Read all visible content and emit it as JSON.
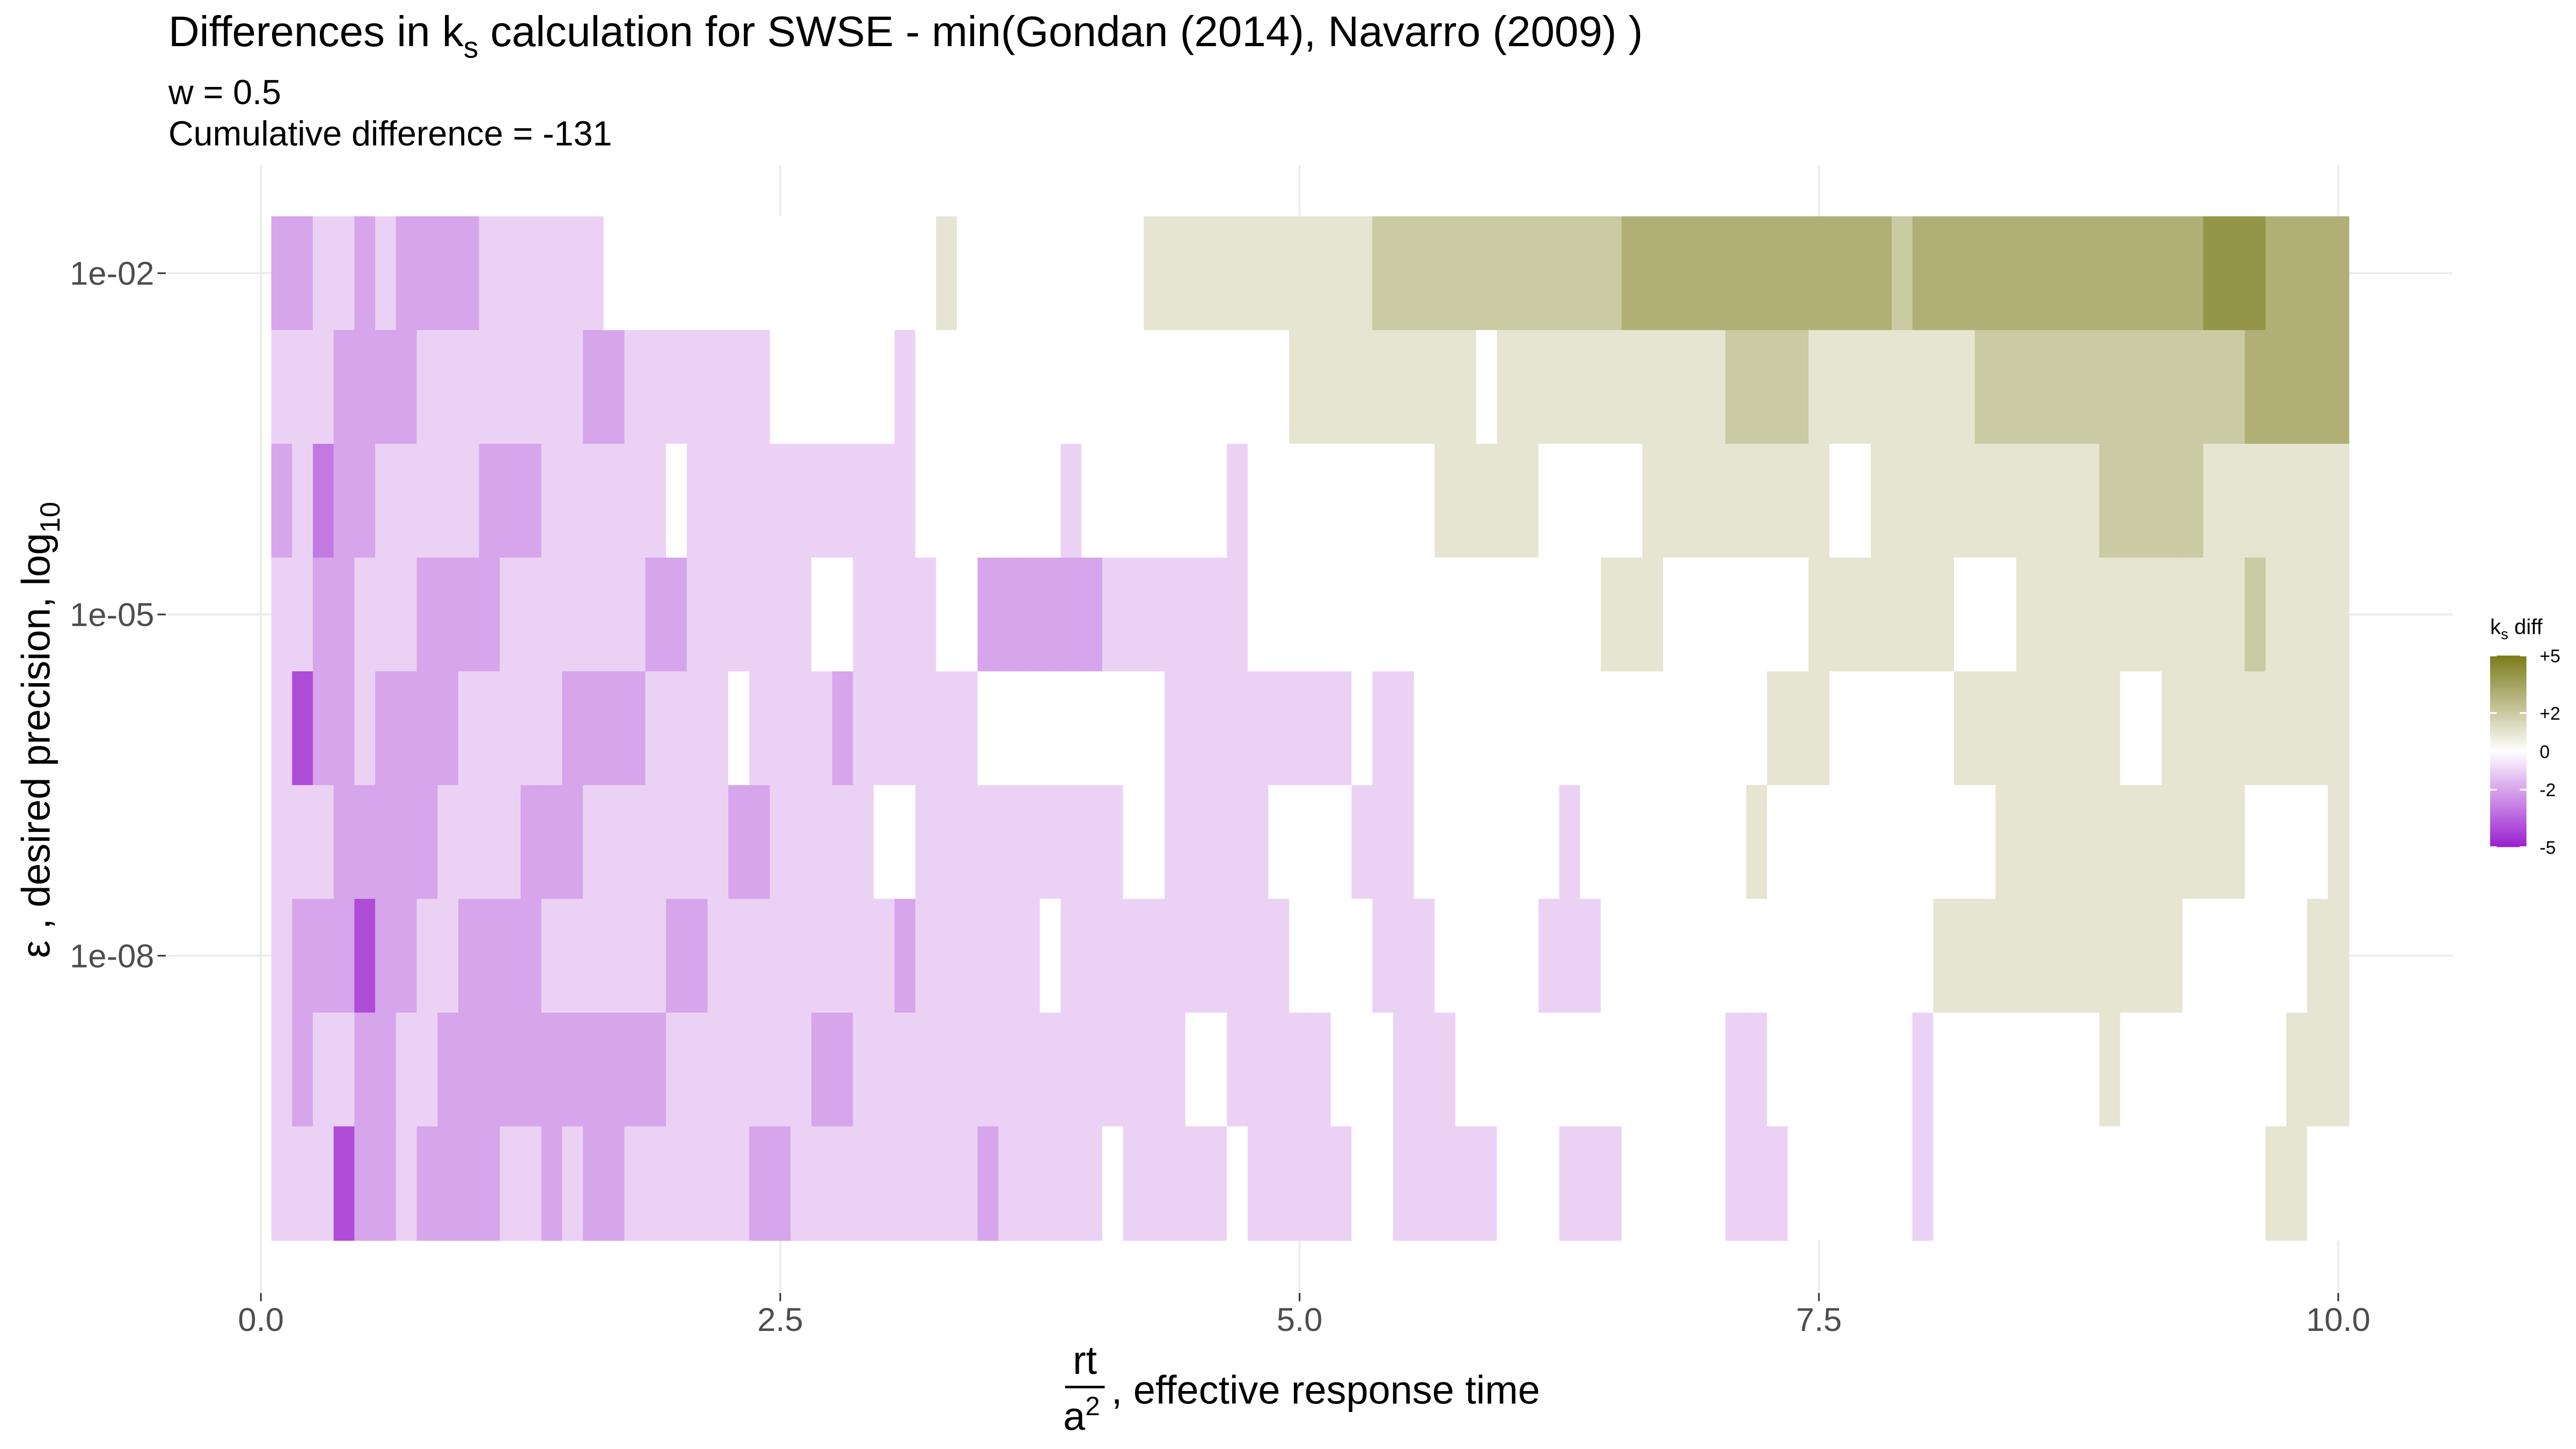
{
  "chart_data": {
    "type": "heatmap",
    "title": {
      "text": "Differences in  k",
      "sub": "s",
      "rest": "  calculation for SWSE - min(Gondan (2014), Navarro (2009) )"
    },
    "subtitle": [
      "w = 0.5",
      "Cumulative difference = -131"
    ],
    "xlabel": {
      "numerator": "rt",
      "denominator": "a",
      "denominator_sup": "2",
      "text": ", effective response time"
    },
    "ylabel": {
      "text": "ε , desired precision,  log",
      "sub": "10"
    },
    "legend_title": {
      "text": "k",
      "sub": "s",
      "rest": " diff"
    },
    "x": [
      0.1,
      0.2,
      0.3,
      0.4,
      0.5,
      0.6,
      0.7,
      0.8,
      0.9,
      1.0,
      1.1,
      1.2,
      1.3,
      1.4,
      1.5,
      1.6,
      1.7,
      1.8,
      1.9,
      2.0,
      2.1,
      2.2,
      2.3,
      2.4,
      2.5,
      2.6,
      2.7,
      2.8,
      2.9,
      3.0,
      3.1,
      3.2,
      3.3,
      3.4,
      3.5,
      3.6,
      3.7,
      3.8,
      3.9,
      4.0,
      4.1,
      4.2,
      4.3,
      4.4,
      4.5,
      4.6,
      4.7,
      4.8,
      4.9,
      5.0,
      5.1,
      5.2,
      5.3,
      5.4,
      5.5,
      5.6,
      5.7,
      5.8,
      5.9,
      6.0,
      6.1,
      6.2,
      6.3,
      6.4,
      6.5,
      6.6,
      6.7,
      6.8,
      6.9,
      7.0,
      7.1,
      7.2,
      7.3,
      7.4,
      7.5,
      7.6,
      7.7,
      7.8,
      7.9,
      8.0,
      8.1,
      8.2,
      8.3,
      8.4,
      8.5,
      8.6,
      8.7,
      8.8,
      8.9,
      9.0,
      9.1,
      9.2,
      9.3,
      9.4,
      9.5,
      9.6,
      9.7,
      9.8,
      9.9,
      10.0
    ],
    "y": [
      0.01,
      0.001,
      0.0001,
      1e-05,
      1e-06,
      1e-07,
      1e-08,
      1e-09,
      1e-10
    ],
    "z": [
      [
        -2,
        -2,
        -1,
        -1,
        -2,
        -1,
        -2,
        -2,
        -2,
        -2,
        -1,
        -1,
        -1,
        -1,
        -1,
        -1,
        0,
        0,
        0,
        0,
        0,
        0,
        0,
        0,
        0,
        0,
        0,
        0,
        0,
        0,
        0,
        0,
        1,
        0,
        0,
        0,
        0,
        0,
        0,
        0,
        0,
        0,
        1,
        1,
        1,
        1,
        1,
        1,
        1,
        1,
        1,
        1,
        1,
        2,
        2,
        2,
        2,
        2,
        2,
        2,
        2,
        2,
        2,
        2,
        2,
        3,
        3,
        3,
        3,
        3,
        3,
        3,
        3,
        3,
        3,
        3,
        3,
        3,
        2,
        3,
        3,
        3,
        3,
        3,
        3,
        3,
        3,
        3,
        3,
        3,
        3,
        3,
        3,
        4,
        4,
        4,
        3,
        3,
        3,
        3
      ],
      [
        -1,
        -1,
        -1,
        -2,
        -2,
        -2,
        -2,
        -1,
        -1,
        -1,
        -1,
        -1,
        -1,
        -1,
        -1,
        -2,
        -2,
        -1,
        -1,
        -1,
        -1,
        -1,
        -1,
        -1,
        0,
        0,
        0,
        0,
        0,
        0,
        -1,
        0,
        0,
        0,
        0,
        0,
        0,
        0,
        0,
        0,
        0,
        0,
        0,
        0,
        0,
        0,
        0,
        0,
        0,
        1,
        1,
        1,
        1,
        1,
        1,
        1,
        1,
        1,
        0,
        1,
        1,
        1,
        1,
        1,
        1,
        1,
        1,
        1,
        1,
        1,
        2,
        2,
        2,
        2,
        1,
        1,
        1,
        1,
        1,
        1,
        1,
        1,
        2,
        2,
        2,
        2,
        2,
        2,
        2,
        2,
        2,
        2,
        2,
        2,
        2,
        3,
        3,
        3,
        3,
        3
      ],
      [
        -2,
        -1,
        -3,
        -2,
        -2,
        -1,
        -1,
        -1,
        -1,
        -1,
        -2,
        -2,
        -2,
        -1,
        -1,
        -1,
        -1,
        -1,
        -1,
        0,
        -1,
        -1,
        -1,
        -1,
        -1,
        -1,
        -1,
        -1,
        -1,
        -1,
        -1,
        0,
        0,
        0,
        0,
        0,
        0,
        0,
        -1,
        0,
        0,
        0,
        0,
        0,
        0,
        0,
        -1,
        0,
        0,
        0,
        0,
        0,
        0,
        0,
        0,
        0,
        1,
        1,
        1,
        1,
        1,
        0,
        0,
        0,
        0,
        0,
        1,
        1,
        1,
        1,
        1,
        1,
        1,
        1,
        1,
        0,
        0,
        1,
        1,
        1,
        1,
        1,
        1,
        1,
        1,
        1,
        1,
        1,
        2,
        2,
        2,
        2,
        2,
        1,
        1,
        1,
        1,
        1,
        1,
        1
      ],
      [
        -1,
        -1,
        -2,
        -2,
        -1,
        -1,
        -1,
        -2,
        -2,
        -2,
        -2,
        -1,
        -1,
        -1,
        -1,
        -1,
        -1,
        -1,
        -2,
        -2,
        -1,
        -1,
        -1,
        -1,
        -1,
        -1,
        0,
        0,
        -1,
        -1,
        -1,
        -1,
        0,
        0,
        -2,
        -2,
        -2,
        -2,
        -2,
        -2,
        -1,
        -1,
        -1,
        -1,
        -1,
        -1,
        -1,
        0,
        0,
        0,
        0,
        0,
        0,
        0,
        0,
        0,
        0,
        0,
        0,
        0,
        0,
        0,
        0,
        0,
        1,
        1,
        1,
        0,
        0,
        0,
        0,
        0,
        0,
        0,
        1,
        1,
        1,
        1,
        1,
        1,
        1,
        0,
        0,
        0,
        1,
        1,
        1,
        1,
        1,
        1,
        1,
        1,
        1,
        1,
        1,
        2,
        1,
        1,
        1,
        1
      ],
      [
        -1,
        -4,
        -2,
        -2,
        -1,
        -2,
        -2,
        -2,
        -2,
        -1,
        -1,
        -1,
        -1,
        -1,
        -2,
        -2,
        -2,
        -2,
        -1,
        -1,
        -1,
        -1,
        0,
        -1,
        -1,
        -1,
        -1,
        -2,
        -1,
        -1,
        -1,
        -1,
        -1,
        -1,
        0,
        0,
        0,
        0,
        0,
        0,
        0,
        0,
        0,
        -1,
        -1,
        -1,
        -1,
        -1,
        -1,
        -1,
        -1,
        -1,
        0,
        -1,
        -1,
        0,
        0,
        0,
        0,
        0,
        0,
        0,
        0,
        0,
        0,
        0,
        0,
        0,
        0,
        0,
        0,
        0,
        1,
        1,
        1,
        0,
        0,
        0,
        0,
        0,
        0,
        1,
        1,
        1,
        1,
        1,
        1,
        1,
        1,
        0,
        0,
        1,
        1,
        1,
        1,
        1,
        1,
        1,
        1,
        1
      ],
      [
        -1,
        -1,
        -1,
        -2,
        -2,
        -2,
        -2,
        -2,
        -1,
        -1,
        -1,
        -1,
        -2,
        -2,
        -2,
        -1,
        -1,
        -1,
        -1,
        -1,
        -1,
        -1,
        -2,
        -2,
        -1,
        -1,
        -1,
        -1,
        -1,
        0,
        0,
        -1,
        -1,
        -1,
        -1,
        -1,
        -1,
        -1,
        -1,
        -1,
        -1,
        0,
        0,
        -1,
        -1,
        -1,
        -1,
        -1,
        0,
        0,
        0,
        0,
        -1,
        -1,
        -1,
        0,
        0,
        0,
        0,
        0,
        0,
        0,
        -1,
        0,
        0,
        0,
        0,
        0,
        0,
        0,
        0,
        1,
        0,
        0,
        0,
        0,
        0,
        0,
        0,
        0,
        0,
        0,
        0,
        1,
        1,
        1,
        1,
        1,
        1,
        1,
        1,
        1,
        1,
        1,
        1,
        0,
        0,
        0,
        0,
        1
      ],
      [
        -1,
        -2,
        -2,
        -2,
        -4,
        -2,
        -2,
        -1,
        -1,
        -2,
        -2,
        -2,
        -2,
        -1,
        -1,
        -1,
        -1,
        -1,
        -1,
        -2,
        -2,
        -1,
        -1,
        -1,
        -1,
        -1,
        -1,
        -1,
        -1,
        -1,
        -2,
        -1,
        -1,
        -1,
        -1,
        -1,
        -1,
        0,
        -1,
        -1,
        -1,
        -1,
        -1,
        -1,
        -1,
        -1,
        -1,
        -1,
        -1,
        0,
        0,
        0,
        0,
        -1,
        -1,
        -1,
        0,
        0,
        0,
        0,
        0,
        -1,
        -1,
        -1,
        0,
        0,
        0,
        0,
        0,
        0,
        0,
        0,
        0,
        0,
        0,
        0,
        0,
        0,
        0,
        0,
        1,
        1,
        1,
        1,
        1,
        1,
        1,
        1,
        1,
        1,
        1,
        1,
        0,
        0,
        0,
        0,
        0,
        0,
        1,
        1
      ],
      [
        -1,
        -2,
        -1,
        -1,
        -2,
        -2,
        -1,
        -1,
        -2,
        -2,
        -2,
        -2,
        -2,
        -2,
        -2,
        -2,
        -2,
        -2,
        -2,
        -1,
        -1,
        -1,
        -1,
        -1,
        -1,
        -1,
        -2,
        -2,
        -1,
        -1,
        -1,
        -1,
        -1,
        -1,
        -1,
        -1,
        -1,
        -1,
        -1,
        -1,
        -1,
        -1,
        -1,
        -1,
        0,
        0,
        -1,
        -1,
        -1,
        -1,
        -1,
        0,
        0,
        0,
        -1,
        -1,
        -1,
        0,
        0,
        0,
        0,
        0,
        0,
        0,
        0,
        0,
        0,
        0,
        0,
        0,
        -1,
        -1,
        0,
        0,
        0,
        0,
        0,
        0,
        0,
        -1,
        0,
        0,
        0,
        0,
        0,
        0,
        0,
        0,
        1,
        0,
        0,
        0,
        0,
        0,
        0,
        0,
        0,
        1,
        1,
        1
      ],
      [
        -1,
        -1,
        -1,
        -4,
        -2,
        -2,
        -1,
        -2,
        -2,
        -2,
        -2,
        -1,
        -1,
        -2,
        -1,
        -2,
        -2,
        -1,
        -1,
        -1,
        -1,
        -1,
        -1,
        -2,
        -2,
        -1,
        -1,
        -1,
        -1,
        -1,
        -1,
        -1,
        -1,
        -1,
        -2,
        -1,
        -1,
        -1,
        -1,
        -1,
        0,
        -1,
        -1,
        -1,
        -1,
        -1,
        0,
        -1,
        -1,
        -1,
        -1,
        -1,
        0,
        0,
        -1,
        -1,
        -1,
        -1,
        -1,
        0,
        0,
        0,
        -1,
        -1,
        -1,
        0,
        0,
        0,
        0,
        0,
        -1,
        -1,
        -1,
        0,
        0,
        0,
        0,
        0,
        0,
        -1,
        0,
        0,
        0,
        0,
        0,
        0,
        0,
        0,
        0,
        0,
        0,
        0,
        0,
        0,
        0,
        0,
        1,
        1,
        0,
        0
      ]
    ],
    "xlim": [
      -0.45,
      10.55
    ],
    "ylim": [
      1.122e-11,
      0.08913
    ],
    "log_y": true,
    "xticks": [
      {
        "value": 0,
        "label": "0.0"
      },
      2.5,
      {
        "value": 5,
        "label": "5.0"
      },
      7.5,
      {
        "value": 10,
        "label": "10.0"
      }
    ],
    "yticks": [
      {
        "value": 0.01,
        "label": "1e-02"
      },
      {
        "value": 1e-05,
        "label": "1e-05"
      },
      {
        "value": 1e-08,
        "label": "1e-08"
      }
    ],
    "grid": true,
    "zlim": [
      -5,
      5
    ],
    "colorscale": {
      "low": "#9a1fce",
      "mid": "#ffffff",
      "high": "#7b7b1a"
    },
    "legend_ticks": [
      {
        "value": 5,
        "label": "+5"
      },
      {
        "value": 2,
        "label": "+2"
      },
      0,
      -2,
      -5
    ]
  }
}
